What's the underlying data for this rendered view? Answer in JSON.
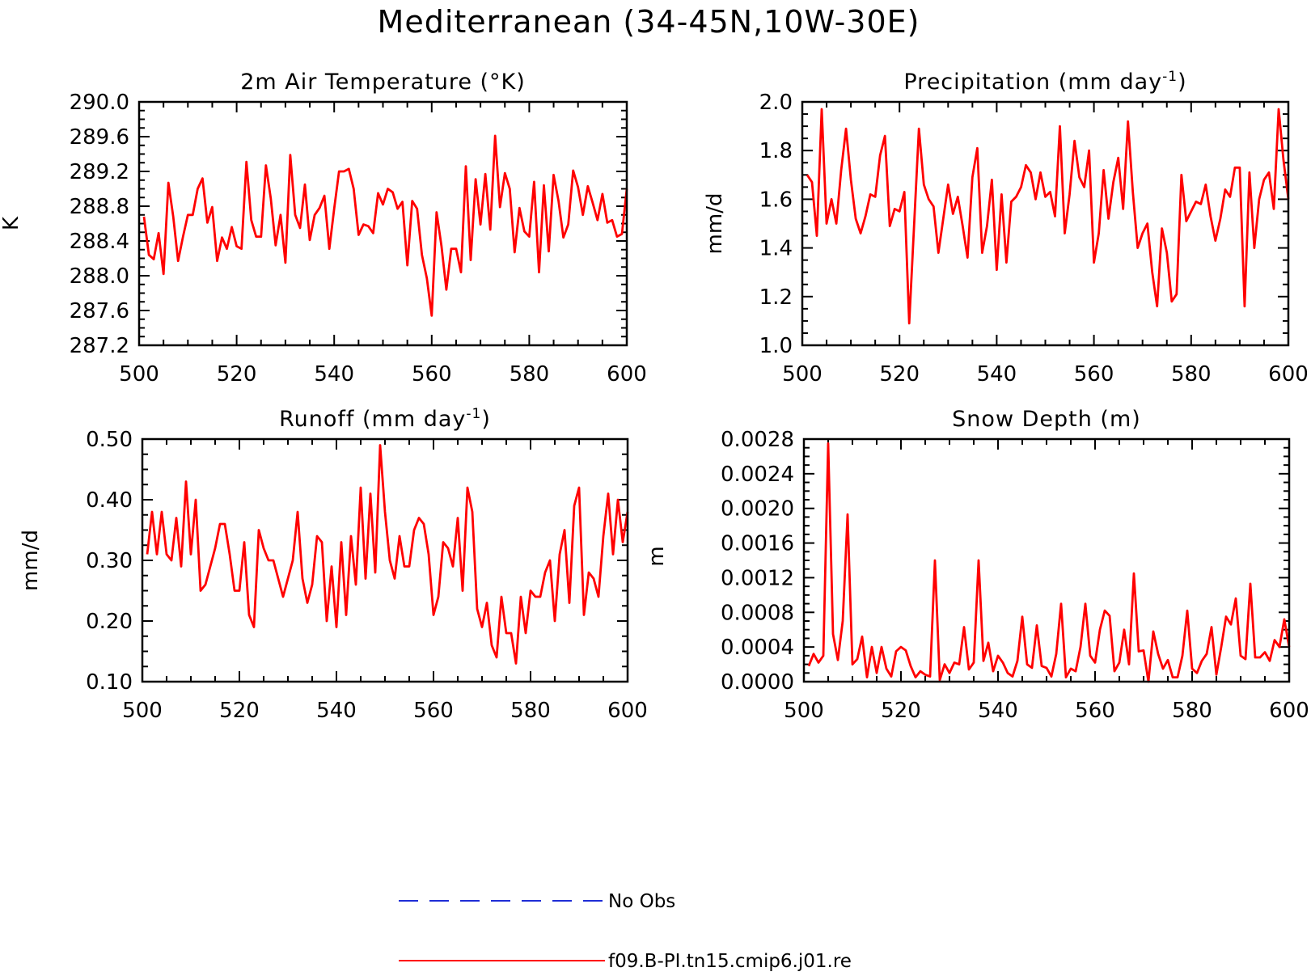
{
  "title": "Mediterranean (34-45N,10W-30E)",
  "legend": [
    {
      "label": "No Obs",
      "color": "#1f2dd6",
      "style": "dashed"
    },
    {
      "label": "f09.B-PI.tn15.cmip6.j01.re",
      "color": "#ff0000",
      "style": "solid"
    }
  ],
  "chart_data": [
    {
      "type": "line",
      "title": "2m Air Temperature (°K)",
      "title_sup": "",
      "title_tail": "",
      "xlabel": "",
      "ylabel": "K",
      "xlim": [
        500,
        600
      ],
      "ylim": [
        287.2,
        290.0
      ],
      "xticks": [
        "500",
        "520",
        "540",
        "560",
        "580",
        "600"
      ],
      "yticks": [
        "287.2",
        "287.6",
        "288.0",
        "288.4",
        "288.8",
        "289.2",
        "289.6",
        "290.0"
      ],
      "series": [
        {
          "color": "#ff0000",
          "x_start": 501,
          "values": [
            288.68,
            288.24,
            288.19,
            288.49,
            288.02,
            289.07,
            288.68,
            288.17,
            288.45,
            288.7,
            288.7,
            289.0,
            289.12,
            288.61,
            288.79,
            288.17,
            288.44,
            288.31,
            288.56,
            288.34,
            288.31,
            289.31,
            288.64,
            288.45,
            288.45,
            289.27,
            288.89,
            288.35,
            288.7,
            288.15,
            289.39,
            288.7,
            288.55,
            289.05,
            288.41,
            288.7,
            288.78,
            288.92,
            288.31,
            288.77,
            289.2,
            289.2,
            289.23,
            289.0,
            288.47,
            288.59,
            288.57,
            288.49,
            288.95,
            288.82,
            289.0,
            288.96,
            288.77,
            288.85,
            288.12,
            288.86,
            288.77,
            288.24,
            287.97,
            287.54,
            288.73,
            288.34,
            287.84,
            288.31,
            288.31,
            288.04,
            289.26,
            288.18,
            289.11,
            288.59,
            289.17,
            288.53,
            289.61,
            288.79,
            289.18,
            289.0,
            288.27,
            288.78,
            288.51,
            288.45,
            289.08,
            288.04,
            289.04,
            288.28,
            289.16,
            288.86,
            288.44,
            288.59,
            289.21,
            289.02,
            288.7,
            289.03,
            288.84,
            288.64,
            288.94,
            288.61,
            288.64,
            288.45,
            288.48,
            289.0
          ]
        }
      ]
    },
    {
      "type": "line",
      "title": "Precipitation (mm day",
      "title_sup": "-1",
      "title_tail": ")",
      "xlabel": "",
      "ylabel": "mm/d",
      "xlim": [
        500,
        600
      ],
      "ylim": [
        1.0,
        2.0
      ],
      "xticks": [
        "500",
        "520",
        "540",
        "560",
        "580",
        "600"
      ],
      "yticks": [
        "1.0",
        "1.2",
        "1.4",
        "1.6",
        "1.8",
        "2.0"
      ],
      "series": [
        {
          "color": "#ff0000",
          "x_start": 501,
          "values": [
            1.7,
            1.67,
            1.45,
            1.97,
            1.5,
            1.6,
            1.5,
            1.72,
            1.89,
            1.68,
            1.52,
            1.46,
            1.53,
            1.62,
            1.61,
            1.78,
            1.86,
            1.49,
            1.56,
            1.55,
            1.63,
            1.09,
            1.49,
            1.89,
            1.66,
            1.6,
            1.57,
            1.38,
            1.52,
            1.66,
            1.54,
            1.61,
            1.49,
            1.36,
            1.69,
            1.81,
            1.38,
            1.49,
            1.68,
            1.31,
            1.62,
            1.34,
            1.59,
            1.61,
            1.65,
            1.74,
            1.71,
            1.6,
            1.71,
            1.61,
            1.63,
            1.53,
            1.9,
            1.46,
            1.62,
            1.84,
            1.69,
            1.65,
            1.8,
            1.34,
            1.46,
            1.72,
            1.52,
            1.67,
            1.77,
            1.56,
            1.92,
            1.63,
            1.4,
            1.46,
            1.5,
            1.3,
            1.16,
            1.48,
            1.38,
            1.18,
            1.21,
            1.7,
            1.51,
            1.55,
            1.59,
            1.58,
            1.66,
            1.53,
            1.43,
            1.52,
            1.64,
            1.61,
            1.73,
            1.73,
            1.16,
            1.71,
            1.4,
            1.6,
            1.68,
            1.71,
            1.56,
            1.97,
            1.76,
            1.6
          ]
        }
      ]
    },
    {
      "type": "line",
      "title": "Runoff (mm day",
      "title_sup": "-1",
      "title_tail": ")",
      "xlabel": "",
      "ylabel": "mm/d",
      "xlim": [
        500,
        600
      ],
      "ylim": [
        0.1,
        0.5
      ],
      "xticks": [
        "500",
        "520",
        "540",
        "560",
        "580",
        "600"
      ],
      "yticks": [
        "0.10",
        "0.20",
        "0.30",
        "0.40",
        "0.50"
      ],
      "series": [
        {
          "color": "#ff0000",
          "x_start": 501,
          "values": [
            0.31,
            0.38,
            0.31,
            0.38,
            0.31,
            0.3,
            0.37,
            0.29,
            0.43,
            0.31,
            0.4,
            0.25,
            0.26,
            0.29,
            0.32,
            0.36,
            0.36,
            0.31,
            0.25,
            0.25,
            0.33,
            0.21,
            0.19,
            0.35,
            0.32,
            0.3,
            0.3,
            0.27,
            0.24,
            0.27,
            0.3,
            0.38,
            0.27,
            0.23,
            0.26,
            0.34,
            0.33,
            0.2,
            0.29,
            0.19,
            0.33,
            0.21,
            0.34,
            0.26,
            0.42,
            0.27,
            0.41,
            0.28,
            0.49,
            0.38,
            0.3,
            0.27,
            0.34,
            0.29,
            0.29,
            0.35,
            0.37,
            0.36,
            0.31,
            0.21,
            0.24,
            0.33,
            0.32,
            0.29,
            0.37,
            0.25,
            0.42,
            0.38,
            0.22,
            0.19,
            0.23,
            0.16,
            0.14,
            0.24,
            0.18,
            0.18,
            0.13,
            0.24,
            0.18,
            0.25,
            0.24,
            0.24,
            0.28,
            0.3,
            0.2,
            0.31,
            0.35,
            0.23,
            0.39,
            0.42,
            0.21,
            0.28,
            0.27,
            0.24,
            0.34,
            0.41,
            0.31,
            0.4,
            0.33,
            0.38
          ]
        }
      ]
    },
    {
      "type": "line",
      "title": "Snow Depth (m)",
      "title_sup": "",
      "title_tail": "",
      "xlabel": "",
      "ylabel": "m",
      "xlim": [
        500,
        600
      ],
      "ylim": [
        0.0,
        0.0028
      ],
      "xticks": [
        "500",
        "520",
        "540",
        "560",
        "580",
        "600"
      ],
      "yticks": [
        "0.0000",
        "0.0004",
        "0.0008",
        "0.0012",
        "0.0016",
        "0.0020",
        "0.0024",
        "0.0028"
      ],
      "series": [
        {
          "color": "#ff0000",
          "x_start": 501,
          "values": [
            0.00018,
            0.00032,
            0.00022,
            0.0003,
            0.00275,
            0.00055,
            0.00025,
            0.0007,
            0.00193,
            0.0002,
            0.00026,
            0.00052,
            5e-05,
            0.0004,
            0.0001,
            0.0004,
            0.00015,
            6e-05,
            0.00035,
            0.0004,
            0.00036,
            0.00018,
            5e-05,
            0.00012,
            8e-05,
            6e-05,
            0.0014,
            2e-05,
            0.0002,
            0.0001,
            0.00022,
            0.0002,
            0.00063,
            0.00014,
            0.00022,
            0.0014,
            0.00024,
            0.00045,
            0.00012,
            0.0003,
            0.00022,
            0.0001,
            6e-05,
            0.00024,
            0.00075,
            0.0002,
            0.00016,
            0.00065,
            0.00018,
            0.00016,
            6e-05,
            0.00032,
            0.0009,
            5e-05,
            0.00015,
            0.00012,
            0.0004,
            0.0009,
            0.0003,
            0.00022,
            0.0006,
            0.00082,
            0.00076,
            0.00012,
            0.00022,
            0.0006,
            0.0002,
            0.00125,
            0.00035,
            0.00036,
            0.0,
            0.00058,
            0.00032,
            0.00015,
            0.00025,
            5e-05,
            5e-05,
            0.0003,
            0.00082,
            0.00015,
            0.0001,
            0.00024,
            0.00032,
            0.00063,
            8e-05,
            0.0004,
            0.00075,
            0.00066,
            0.00096,
            0.0003,
            0.00026,
            0.00113,
            0.00028,
            0.00028,
            0.00034,
            0.00024,
            0.00048,
            0.0004,
            0.00072,
            0.0004
          ]
        }
      ]
    }
  ]
}
